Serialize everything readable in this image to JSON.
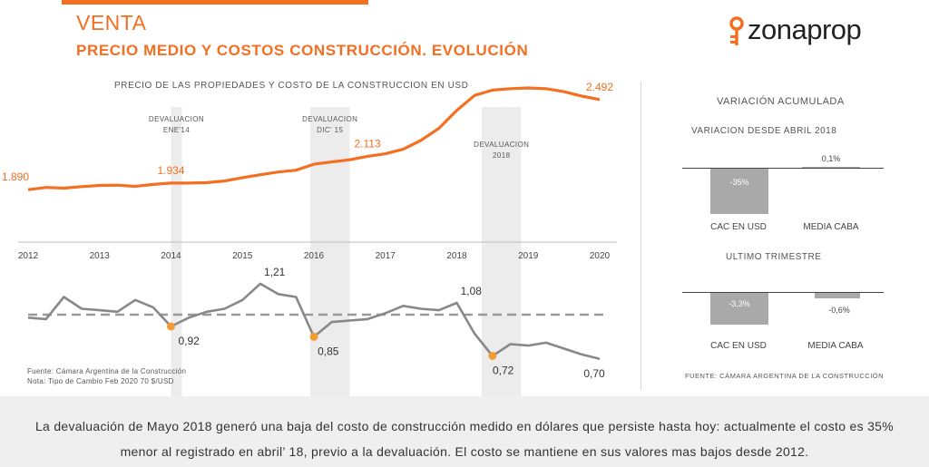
{
  "header": {
    "title": "VENTA",
    "subtitle": "PRECIO MEDIO Y COSTOS CONSTRUCCIÓN. EVOLUCIÓN",
    "brand": "zonaprop",
    "brand_icon": "key-icon",
    "accent_color": "#f36f21"
  },
  "left": {
    "title": "PRECIO DE LAS PROPIEDADES Y COSTO DE LA CONSTRUCCION EN USD",
    "source1": "Fuente: Cámara Argentina de la Construcción",
    "source2": "Nota: Tipo de Cambio Feb 2020 70 $/USD"
  },
  "chart_data": [
    {
      "type": "line",
      "name": "precio",
      "x_years": [
        "2012",
        "2013",
        "2014",
        "2015",
        "2016",
        "2017",
        "2018",
        "2019",
        "2020"
      ],
      "x_range": [
        2012.0,
        2020.0
      ],
      "y_range": [
        1800,
        2600
      ],
      "color": "#f36f21",
      "x": [
        2012.0,
        2012.25,
        2012.5,
        2012.75,
        2013.0,
        2013.25,
        2013.5,
        2013.75,
        2014.0,
        2014.25,
        2014.5,
        2014.75,
        2015.0,
        2015.25,
        2015.5,
        2015.75,
        2016.0,
        2016.25,
        2016.5,
        2016.75,
        2017.0,
        2017.25,
        2017.5,
        2017.75,
        2018.0,
        2018.25,
        2018.5,
        2018.75,
        2019.0,
        2019.25,
        2019.5,
        2019.75,
        2020.0
      ],
      "values": [
        1890,
        1905,
        1900,
        1910,
        1918,
        1920,
        1912,
        1925,
        1934,
        1934,
        1937,
        1948,
        1970,
        1990,
        2008,
        2020,
        2060,
        2075,
        2090,
        2113,
        2130,
        2160,
        2220,
        2300,
        2420,
        2520,
        2555,
        2565,
        2570,
        2565,
        2545,
        2515,
        2492
      ],
      "labels": [
        {
          "x": 2012.0,
          "value": 1890,
          "text": "1.890"
        },
        {
          "x": 2014.0,
          "value": 1934,
          "text": "1.934"
        },
        {
          "x": 2016.75,
          "value": 2113,
          "text": "2.113"
        },
        {
          "x": 2020.0,
          "value": 2492,
          "text": "2.492"
        }
      ],
      "bands": [
        {
          "label": [
            "DEVALUACION",
            "ENE'14"
          ],
          "from": 2014.0,
          "to": 2014.13
        },
        {
          "label": [
            "DEVALUACION",
            "DIC' 15"
          ],
          "from": 2015.95,
          "to": 2016.5
        },
        {
          "label": [
            "DEVALUACION",
            "2018"
          ],
          "from": 2018.35,
          "to": 2018.9
        }
      ]
    },
    {
      "type": "line",
      "name": "costo",
      "x_range": [
        2012.0,
        2020.0
      ],
      "y_range": [
        0.6,
        1.3
      ],
      "reference_line": 1.0,
      "color": "#888888",
      "x": [
        2012.0,
        2012.25,
        2012.5,
        2012.75,
        2013.0,
        2013.25,
        2013.5,
        2013.75,
        2014.0,
        2014.25,
        2014.5,
        2014.75,
        2015.0,
        2015.25,
        2015.5,
        2015.75,
        2016.0,
        2016.25,
        2016.5,
        2016.75,
        2017.0,
        2017.25,
        2017.5,
        2017.75,
        2018.0,
        2018.25,
        2018.5,
        2018.75,
        2019.0,
        2019.25,
        2019.5,
        2019.75,
        2020.0
      ],
      "values": [
        0.98,
        0.97,
        1.12,
        1.04,
        1.03,
        1.02,
        1.1,
        1.05,
        0.92,
        0.98,
        1.02,
        1.04,
        1.1,
        1.21,
        1.14,
        1.12,
        0.85,
        0.95,
        0.96,
        0.97,
        1.01,
        1.06,
        1.04,
        1.03,
        1.08,
        0.87,
        0.72,
        0.8,
        0.79,
        0.81,
        0.77,
        0.73,
        0.7
      ],
      "labels": [
        {
          "x": 2014.25,
          "value": 0.92,
          "text": "0,92"
        },
        {
          "x": 2015.45,
          "value": 1.21,
          "text": "1,21"
        },
        {
          "x": 2016.2,
          "value": 0.85,
          "text": "0,85"
        },
        {
          "x": 2018.2,
          "value": 1.08,
          "text": "1,08"
        },
        {
          "x": 2018.65,
          "value": 0.72,
          "text": "0,72"
        },
        {
          "x": 2020.0,
          "value": 0.7,
          "text": "0,70"
        }
      ]
    },
    {
      "type": "bar",
      "name": "variacion-desde-abril",
      "title": "VARIACION DESDE ABRIL 2018",
      "categories": [
        "CAC EN USD",
        "MEDIA CABA"
      ],
      "values": [
        -35,
        0.1
      ],
      "value_labels": [
        "-35%",
        "0,1%"
      ]
    },
    {
      "type": "bar",
      "name": "ultimo-trimestre",
      "title": "ULTIMO TRIMESTRE",
      "categories": [
        "CAC EN USD",
        "MEDIA CABA"
      ],
      "values": [
        -3.3,
        -0.6
      ],
      "value_labels": [
        "-3,3%",
        "-0,6%"
      ]
    }
  ],
  "right": {
    "title": "VARIACIÓN ACUMULADA",
    "source": "FUENTE: CÁMARA ARGENTINA DE LA CONSTRUCCIÓN"
  },
  "footer": {
    "line1": "La devaluación de Mayo 2018 generó una baja del costo de construcción medido en dólares que persiste hasta hoy: actualmente el costo es 35%",
    "line2": "menor al registrado en abril’ 18, previo a la devaluación. El costo se mantiene en sus valores mas bajos desde 2012."
  }
}
